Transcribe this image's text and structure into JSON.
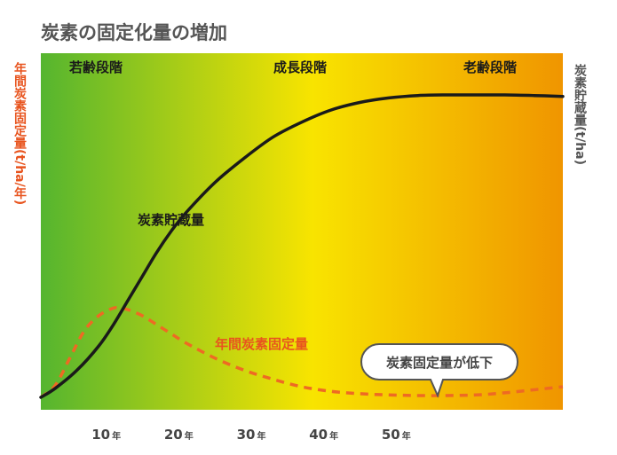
{
  "title": "炭素の固定化量の増加",
  "stages": [
    "若齢段階",
    "成長段階",
    "老齢段階"
  ],
  "left_axis_label": "年間炭素固定量(t/ha/年)",
  "right_axis_label": "炭素貯蔵量(t/ha)",
  "bubble_text": "炭素固定量が低下",
  "colors": {
    "gradient_start": "#55b52f",
    "gradient_mid": "#f8e400",
    "gradient_end": "#f09500",
    "stock_line": "#1a1a1a",
    "fixation_line": "#ee6a23",
    "bubble_border": "#555555"
  },
  "chart_data": {
    "type": "line",
    "title": "炭素の固定化量の増加",
    "xlabel": "",
    "x_ticks": [
      {
        "value": 10,
        "num": "10",
        "unit": "年"
      },
      {
        "value": 20,
        "num": "20",
        "unit": "年"
      },
      {
        "value": 30,
        "num": "30",
        "unit": "年"
      },
      {
        "value": 40,
        "num": "40",
        "unit": "年"
      },
      {
        "value": 50,
        "num": "50",
        "unit": "年"
      }
    ],
    "xlim": [
      0,
      72
    ],
    "ylim": [
      0,
      100
    ],
    "y_ticks_shown": false,
    "series": [
      {
        "name": "炭素貯蔵量",
        "style": "solid",
        "x": [
          0,
          2,
          5,
          8,
          10,
          12,
          14,
          16,
          18,
          20,
          24,
          28,
          32,
          36,
          40,
          44,
          48,
          52,
          56,
          60,
          64,
          68,
          72
        ],
        "y": [
          0,
          3,
          9,
          17,
          24,
          32,
          40,
          48,
          55,
          61,
          71,
          79,
          86,
          91,
          95,
          97.5,
          99,
          99.8,
          100,
          100,
          100,
          99.8,
          99.5
        ]
      },
      {
        "name": "年間炭素固定量",
        "style": "dashed",
        "x": [
          0,
          2,
          4,
          6,
          8,
          10,
          11,
          12,
          14,
          16,
          18,
          20,
          24,
          28,
          32,
          36,
          40,
          44,
          48,
          52,
          56,
          60,
          64,
          68,
          72
        ],
        "y": [
          0,
          4,
          13,
          22,
          27,
          29.5,
          29.5,
          29,
          27,
          24,
          21,
          18,
          13,
          9,
          6,
          3.5,
          2,
          1.2,
          0.8,
          0.6,
          0.6,
          0.8,
          1.5,
          2.5,
          3.5
        ]
      }
    ]
  }
}
